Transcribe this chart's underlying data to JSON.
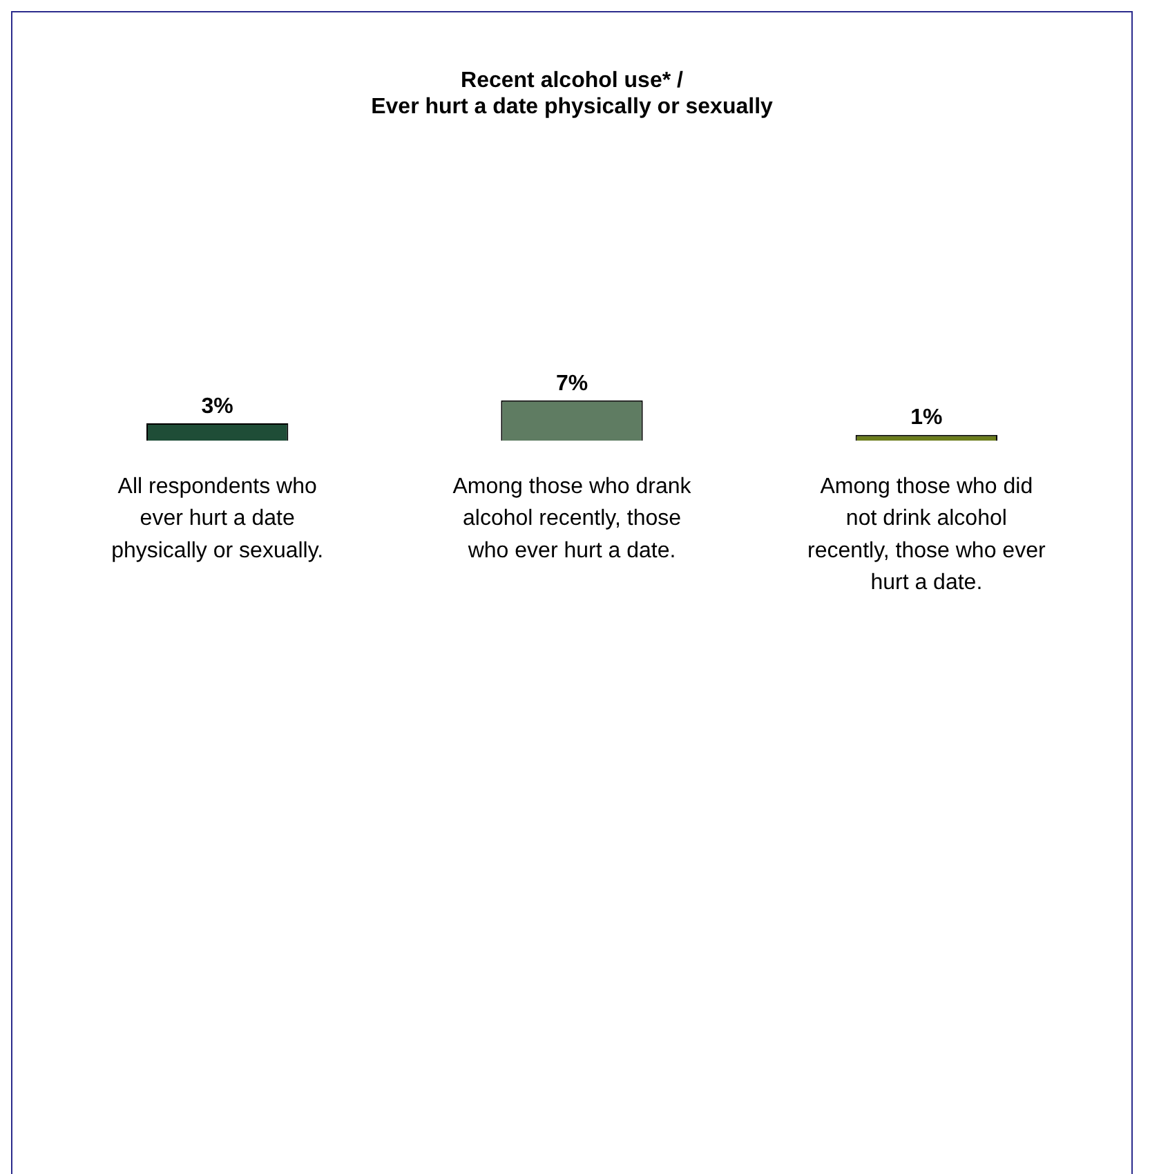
{
  "chart_data": {
    "type": "bar",
    "title": "Recent alcohol use* / Ever hurt a date physically or sexually",
    "categories": [
      "All respondents who ever hurt a date physically or sexually.",
      "Among those who drank alcohol recently, those who ever hurt a date.",
      "Among those who did not drink alcohol recently, those who ever hurt a date."
    ],
    "values": [
      3,
      7,
      1
    ],
    "value_labels": [
      "3%",
      "7%",
      "1%"
    ],
    "colors": [
      "#1f4d37",
      "#5f7c62",
      "#6b7d1c"
    ],
    "grid": false,
    "legend": false
  }
}
